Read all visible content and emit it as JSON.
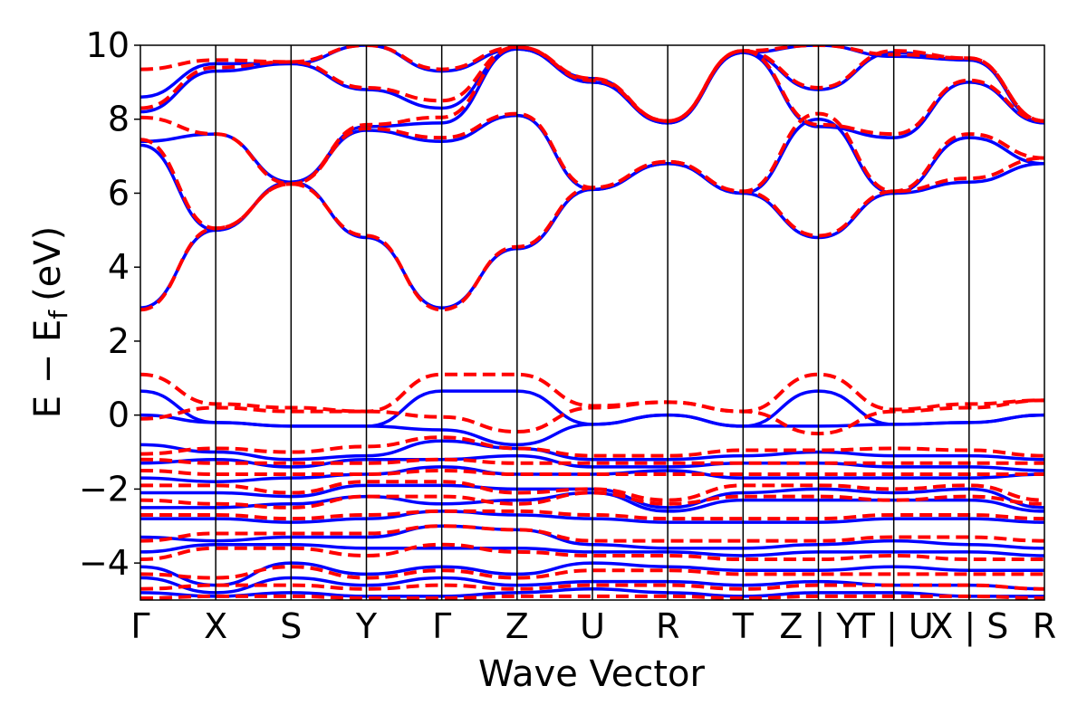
{
  "chart_data": {
    "type": "line",
    "title": "",
    "xlabel": "Wave Vector",
    "ylabel": "E − E",
    "ylabel_subscript": "f",
    "ylabel_unit": "(eV)",
    "ylim": [
      -5,
      10
    ],
    "yticks": [
      -4,
      -2,
      0,
      2,
      4,
      6,
      8,
      10
    ],
    "ytick_labels": [
      "−4",
      "−2",
      "0",
      "2",
      "4",
      "6",
      "8",
      "10"
    ],
    "grid": false,
    "legend": "none",
    "kpath_labels": [
      "Γ",
      "X",
      "S",
      "Y",
      "Γ",
      "Z",
      "U",
      "R",
      "T",
      "Z | Y",
      "T | U",
      "X | S",
      "R"
    ],
    "kpath_positions": [
      0,
      1,
      2,
      3,
      4,
      5,
      6,
      7,
      8,
      9,
      10,
      11,
      12
    ],
    "x": [
      0,
      1,
      2,
      3,
      4,
      5,
      6,
      7,
      8,
      9,
      10,
      11,
      12
    ],
    "series": [
      {
        "style": "solid",
        "color": "#0000ff",
        "bands": [
          [
            2.9,
            5.0,
            6.3,
            4.8,
            2.9,
            4.5,
            6.1,
            6.8,
            6.0,
            4.8,
            6.0,
            6.3,
            6.8
          ],
          [
            7.3,
            5.0,
            6.3,
            7.7,
            7.4,
            8.1,
            6.1,
            6.8,
            6.0,
            8.0,
            6.0,
            7.5,
            6.8
          ],
          [
            7.4,
            7.6,
            6.3,
            7.8,
            7.9,
            9.9,
            9.0,
            7.9,
            9.8,
            7.8,
            7.5,
            9.0,
            7.9
          ],
          [
            8.2,
            9.3,
            9.5,
            8.8,
            8.3,
            9.9,
            9.0,
            7.9,
            9.8,
            8.8,
            9.8,
            9.6,
            7.9
          ],
          [
            8.6,
            9.5,
            9.5,
            10.0,
            9.3,
            9.9,
            9.1,
            7.9,
            9.8,
            10.0,
            9.7,
            9.6,
            7.9
          ],
          [
            0.65,
            -0.2,
            -0.3,
            -0.3,
            0.65,
            0.65,
            -0.25,
            0.0,
            -0.3,
            0.65,
            -0.25,
            -0.2,
            0.0
          ],
          [
            0.0,
            -0.2,
            -0.3,
            -0.3,
            -0.4,
            -0.8,
            -0.25,
            0.0,
            -0.3,
            -0.3,
            -0.25,
            -0.2,
            0.0
          ],
          [
            -0.8,
            -1.0,
            -1.2,
            -1.1,
            -0.7,
            -0.9,
            -1.2,
            -1.2,
            -1.1,
            -1.0,
            -1.1,
            -1.1,
            -1.2
          ],
          [
            -1.3,
            -1.2,
            -1.4,
            -1.2,
            -1.2,
            -1.1,
            -1.4,
            -1.4,
            -1.3,
            -1.3,
            -1.4,
            -1.4,
            -1.5
          ],
          [
            -1.7,
            -1.8,
            -1.7,
            -1.6,
            -1.4,
            -1.6,
            -1.6,
            -1.5,
            -1.7,
            -1.7,
            -1.7,
            -1.7,
            -1.6
          ],
          [
            -2.1,
            -2.1,
            -2.2,
            -1.9,
            -1.9,
            -2.0,
            -2.0,
            -2.5,
            -2.1,
            -2.0,
            -2.1,
            -2.0,
            -2.5
          ],
          [
            -2.5,
            -2.5,
            -2.4,
            -2.2,
            -2.4,
            -2.3,
            -2.1,
            -2.6,
            -2.3,
            -2.3,
            -2.3,
            -2.3,
            -2.6
          ],
          [
            -2.8,
            -2.8,
            -2.9,
            -2.8,
            -2.6,
            -2.7,
            -2.8,
            -2.9,
            -2.9,
            -2.9,
            -2.8,
            -2.8,
            -2.9
          ],
          [
            -3.3,
            -3.4,
            -3.3,
            -3.3,
            -3.0,
            -3.1,
            -3.5,
            -3.6,
            -3.6,
            -3.5,
            -3.4,
            -3.5,
            -3.6
          ],
          [
            -3.7,
            -3.5,
            -3.5,
            -3.6,
            -3.6,
            -3.6,
            -3.7,
            -3.7,
            -3.8,
            -3.7,
            -3.7,
            -3.7,
            -3.8
          ],
          [
            -4.1,
            -4.6,
            -4.0,
            -4.3,
            -4.1,
            -4.3,
            -4.0,
            -4.1,
            -4.2,
            -4.2,
            -4.1,
            -4.2,
            -4.2
          ],
          [
            -4.4,
            -4.8,
            -4.4,
            -4.6,
            -4.4,
            -4.6,
            -4.5,
            -4.5,
            -4.6,
            -4.5,
            -4.6,
            -4.6,
            -4.7
          ],
          [
            -4.8,
            -4.9,
            -4.8,
            -4.9,
            -4.9,
            -4.8,
            -4.7,
            -4.8,
            -4.9,
            -4.8,
            -4.8,
            -4.9,
            -4.9
          ]
        ]
      },
      {
        "style": "dashed",
        "color": "#ff0000",
        "bands": [
          [
            2.85,
            5.05,
            6.25,
            4.85,
            2.85,
            4.55,
            6.15,
            6.85,
            6.05,
            4.85,
            6.05,
            6.4,
            6.95
          ],
          [
            7.45,
            5.05,
            6.25,
            7.75,
            7.5,
            8.15,
            6.15,
            6.85,
            6.05,
            8.15,
            6.05,
            7.6,
            6.95
          ],
          [
            8.05,
            7.6,
            6.25,
            7.85,
            8.05,
            9.95,
            9.05,
            7.95,
            9.85,
            7.85,
            7.6,
            9.05,
            7.95
          ],
          [
            8.3,
            9.4,
            9.55,
            8.85,
            8.5,
            9.95,
            9.05,
            7.95,
            9.85,
            8.85,
            9.85,
            9.65,
            7.95
          ],
          [
            9.35,
            9.6,
            9.55,
            10.0,
            9.35,
            9.95,
            9.1,
            7.95,
            9.85,
            10.0,
            9.75,
            9.65,
            7.95
          ],
          [
            1.1,
            0.3,
            0.2,
            0.1,
            1.1,
            1.1,
            0.25,
            0.35,
            0.1,
            1.1,
            0.15,
            0.3,
            0.4
          ],
          [
            -0.1,
            0.2,
            0.1,
            0.1,
            -0.05,
            -0.45,
            0.2,
            0.35,
            0.1,
            -0.5,
            0.1,
            0.2,
            0.4
          ],
          [
            -1.05,
            -0.9,
            -1.0,
            -0.85,
            -0.6,
            -0.9,
            -1.1,
            -1.1,
            -0.95,
            -0.95,
            -0.9,
            -0.95,
            -1.1
          ],
          [
            -1.2,
            -1.3,
            -1.3,
            -1.3,
            -1.2,
            -1.3,
            -1.3,
            -1.3,
            -1.3,
            -1.3,
            -1.3,
            -1.3,
            -1.3
          ],
          [
            -1.5,
            -1.6,
            -1.6,
            -1.6,
            -1.5,
            -1.6,
            -1.6,
            -1.6,
            -1.6,
            -1.6,
            -1.6,
            -1.6,
            -1.6
          ],
          [
            -1.9,
            -1.9,
            -2.1,
            -1.8,
            -1.8,
            -2.1,
            -2.0,
            -2.3,
            -1.9,
            -1.9,
            -2.0,
            -1.9,
            -2.3
          ],
          [
            -2.3,
            -2.4,
            -2.5,
            -2.2,
            -2.2,
            -2.4,
            -2.1,
            -2.4,
            -2.2,
            -2.2,
            -2.3,
            -2.2,
            -2.4
          ],
          [
            -2.7,
            -2.7,
            -2.8,
            -2.7,
            -2.6,
            -2.6,
            -2.7,
            -2.8,
            -2.8,
            -2.8,
            -2.7,
            -2.7,
            -2.8
          ],
          [
            -3.4,
            -3.2,
            -3.2,
            -3.2,
            -3.0,
            -3.1,
            -3.4,
            -3.4,
            -3.4,
            -3.4,
            -3.3,
            -3.3,
            -3.4
          ],
          [
            -3.9,
            -3.6,
            -3.6,
            -3.8,
            -3.5,
            -3.7,
            -3.8,
            -3.8,
            -3.9,
            -3.9,
            -3.8,
            -3.9,
            -3.9
          ],
          [
            -4.3,
            -4.4,
            -4.1,
            -4.4,
            -4.2,
            -4.4,
            -4.2,
            -4.2,
            -4.3,
            -4.3,
            -4.3,
            -4.3,
            -4.3
          ],
          [
            -4.7,
            -4.6,
            -4.6,
            -4.7,
            -4.6,
            -4.7,
            -4.6,
            -4.6,
            -4.7,
            -4.6,
            -4.6,
            -4.6,
            -4.7
          ],
          [
            -4.95,
            -4.9,
            -4.9,
            -4.95,
            -4.95,
            -4.9,
            -4.9,
            -4.9,
            -4.95,
            -4.9,
            -4.9,
            -4.9,
            -4.95
          ]
        ]
      }
    ]
  }
}
